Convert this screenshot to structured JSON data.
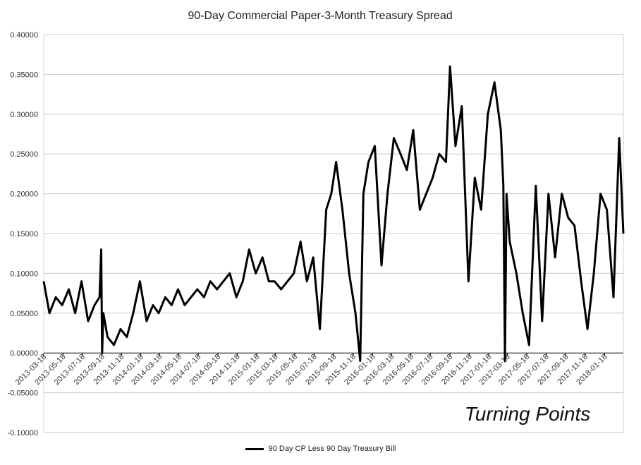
{
  "chart_data": {
    "type": "line",
    "title": "90-Day Commercial Paper-3-Month Treasury Spread",
    "annotation": "Turning Points",
    "xlabel": "",
    "ylabel": "",
    "ylim": [
      -0.1,
      0.4
    ],
    "y_ticks": [
      "0.40000",
      "0.35000",
      "0.30000",
      "0.25000",
      "0.20000",
      "0.15000",
      "0.10000",
      "0.05000",
      "0.00000",
      "-0.05000",
      "-0.10000"
    ],
    "y_tick_values": [
      0.4,
      0.35,
      0.3,
      0.25,
      0.2,
      0.15,
      0.1,
      0.05,
      0.0,
      -0.05,
      -0.1
    ],
    "x_range": [
      "2013-03-18",
      "2018-03-18"
    ],
    "x_ticks": [
      "2013-03-18",
      "2013-05-18",
      "2013-07-18",
      "2013-09-18",
      "2013-11-18",
      "2014-01-18",
      "2014-03-18",
      "2014-05-18",
      "2014-07-18",
      "2014-09-18",
      "2014-11-18",
      "2015-01-18",
      "2015-03-18",
      "2015-05-18",
      "2015-07-18",
      "2015-09-18",
      "2015-11-18",
      "2016-01-18",
      "2016-03-18",
      "2016-05-18",
      "2016-07-18",
      "2016-09-18",
      "2016-11-18",
      "2017-01-18",
      "2017-03-18",
      "2017-05-18",
      "2017-07-18",
      "2017-09-18",
      "2017-11-18",
      "2018-01-18"
    ],
    "grid": true,
    "legend_position": "bottom",
    "series": [
      {
        "name": "90 Day CP Less 90 Day Treasury Bill",
        "color": "#000000",
        "x": [
          "2013-03-18",
          "2013-04-05",
          "2013-04-25",
          "2013-05-15",
          "2013-06-05",
          "2013-06-25",
          "2013-07-15",
          "2013-08-05",
          "2013-08-25",
          "2013-09-10",
          "2013-09-15",
          "2013-09-18",
          "2013-09-22",
          "2013-10-05",
          "2013-10-25",
          "2013-11-15",
          "2013-12-05",
          "2013-12-25",
          "2014-01-15",
          "2014-02-05",
          "2014-02-25",
          "2014-03-15",
          "2014-04-05",
          "2014-04-25",
          "2014-05-15",
          "2014-06-05",
          "2014-06-25",
          "2014-07-15",
          "2014-08-05",
          "2014-08-25",
          "2014-09-15",
          "2014-10-05",
          "2014-10-25",
          "2014-11-15",
          "2014-12-05",
          "2014-12-25",
          "2015-01-15",
          "2015-02-05",
          "2015-02-25",
          "2015-03-15",
          "2015-04-05",
          "2015-04-25",
          "2015-05-15",
          "2015-06-05",
          "2015-06-25",
          "2015-07-15",
          "2015-08-05",
          "2015-08-25",
          "2015-09-10",
          "2015-09-25",
          "2015-10-15",
          "2015-11-05",
          "2015-11-25",
          "2015-12-10",
          "2015-12-20",
          "2016-01-05",
          "2016-01-25",
          "2016-02-15",
          "2016-03-05",
          "2016-03-25",
          "2016-04-15",
          "2016-05-05",
          "2016-05-25",
          "2016-06-15",
          "2016-07-05",
          "2016-07-25",
          "2016-08-15",
          "2016-09-05",
          "2016-09-18",
          "2016-10-05",
          "2016-10-25",
          "2016-11-15",
          "2016-12-05",
          "2016-12-25",
          "2017-01-15",
          "2017-02-05",
          "2017-02-25",
          "2017-03-05",
          "2017-03-10",
          "2017-03-15",
          "2017-03-25",
          "2017-04-15",
          "2017-05-05",
          "2017-05-25",
          "2017-06-15",
          "2017-07-05",
          "2017-07-25",
          "2017-08-15",
          "2017-09-05",
          "2017-09-25",
          "2017-10-15",
          "2017-11-05",
          "2017-11-25",
          "2017-12-15",
          "2018-01-05",
          "2018-01-25",
          "2018-02-15",
          "2018-03-05",
          "2018-03-18"
        ],
        "values": [
          0.09,
          0.05,
          0.07,
          0.06,
          0.08,
          0.05,
          0.09,
          0.04,
          0.06,
          0.07,
          0.13,
          0.0,
          0.05,
          0.02,
          0.01,
          0.03,
          0.02,
          0.05,
          0.09,
          0.04,
          0.06,
          0.05,
          0.07,
          0.06,
          0.08,
          0.06,
          0.07,
          0.08,
          0.07,
          0.09,
          0.08,
          0.09,
          0.1,
          0.07,
          0.09,
          0.13,
          0.1,
          0.12,
          0.09,
          0.09,
          0.08,
          0.09,
          0.1,
          0.14,
          0.09,
          0.12,
          0.03,
          0.18,
          0.2,
          0.24,
          0.18,
          0.1,
          0.05,
          -0.01,
          0.2,
          0.24,
          0.26,
          0.11,
          0.2,
          0.27,
          0.25,
          0.23,
          0.28,
          0.18,
          0.2,
          0.22,
          0.25,
          0.24,
          0.36,
          0.26,
          0.31,
          0.09,
          0.22,
          0.18,
          0.3,
          0.34,
          0.28,
          0.21,
          -0.01,
          0.2,
          0.14,
          0.1,
          0.05,
          0.01,
          0.21,
          0.04,
          0.2,
          0.12,
          0.2,
          0.17,
          0.16,
          0.09,
          0.03,
          0.1,
          0.2,
          0.18,
          0.07,
          0.27,
          0.15
        ]
      }
    ]
  }
}
